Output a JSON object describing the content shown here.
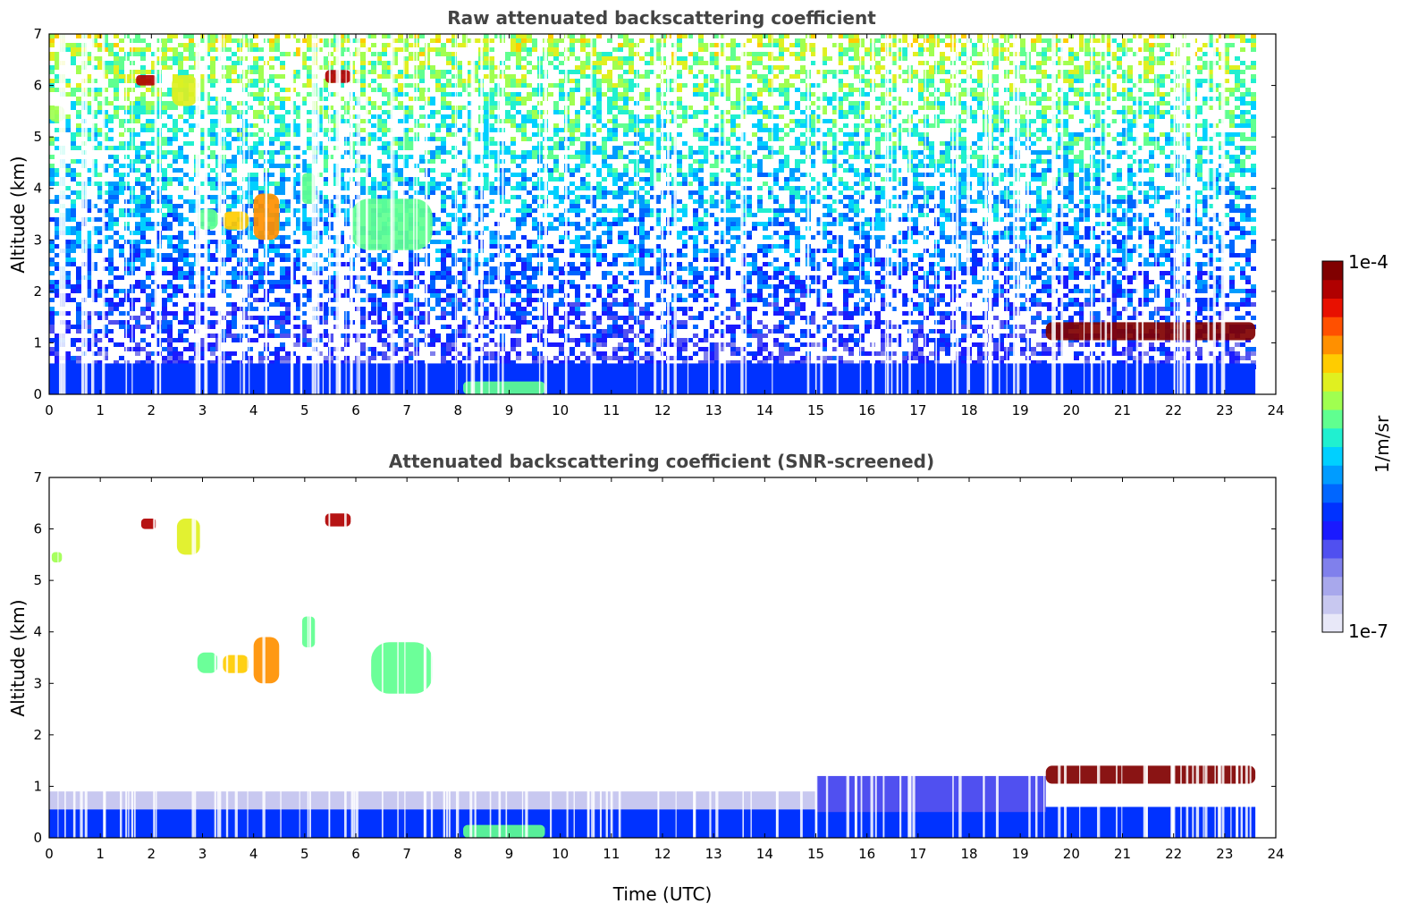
{
  "chart_data": [
    {
      "type": "heatmap",
      "title": "Raw attenuated backscattering coefficient",
      "xlabel": "",
      "ylabel": "Altitude (km)",
      "xlim": [
        0,
        24
      ],
      "ylim": [
        0,
        7
      ],
      "x_ticks": [
        "0",
        "1",
        "2",
        "3",
        "4",
        "5",
        "6",
        "7",
        "8",
        "9",
        "10",
        "11",
        "12",
        "13",
        "14",
        "15",
        "16",
        "17",
        "18",
        "19",
        "20",
        "21",
        "22",
        "23",
        "24"
      ],
      "y_ticks": [
        "0",
        "1",
        "2",
        "3",
        "4",
        "5",
        "6",
        "7"
      ],
      "data_end_hour": 23.6,
      "background": "noisy signal increasing with altitude (blue near surface to yellow-green near 7 km)",
      "features": [
        {
          "label": "boundary layer",
          "x": [
            0,
            23.6
          ],
          "y": [
            0,
            0.6
          ],
          "level": 0.3
        },
        {
          "label": "fog/low layer",
          "x": [
            8.1,
            9.7
          ],
          "y": [
            0,
            0.25
          ],
          "level": 0.55
        },
        {
          "label": "cloud",
          "x": [
            1.7,
            2.1
          ],
          "y": [
            6.0,
            6.2
          ],
          "level": 0.9
        },
        {
          "label": "cloud",
          "x": [
            2.4,
            2.9
          ],
          "y": [
            5.6,
            6.2
          ],
          "level": 0.65
        },
        {
          "label": "cloud",
          "x": [
            5.4,
            5.9
          ],
          "y": [
            6.05,
            6.3
          ],
          "level": 0.9
        },
        {
          "label": "cloud",
          "x": [
            0.0,
            0.3
          ],
          "y": [
            5.3,
            5.6
          ],
          "level": 0.6
        },
        {
          "label": "cloud",
          "x": [
            2.9,
            3.3
          ],
          "y": [
            3.2,
            3.6
          ],
          "level": 0.55
        },
        {
          "label": "cloud",
          "x": [
            3.4,
            3.9
          ],
          "y": [
            3.2,
            3.55
          ],
          "level": 0.7
        },
        {
          "label": "cloud",
          "x": [
            4.0,
            4.5
          ],
          "y": [
            3.0,
            3.9
          ],
          "level": 0.75
        },
        {
          "label": "cloud",
          "x": [
            4.95,
            5.2
          ],
          "y": [
            3.7,
            4.3
          ],
          "level": 0.55
        },
        {
          "label": "cloud",
          "x": [
            5.9,
            7.5
          ],
          "y": [
            2.8,
            3.8
          ],
          "level": 0.55
        },
        {
          "label": "cloud layer",
          "x": [
            19.5,
            23.6
          ],
          "y": [
            1.05,
            1.4
          ],
          "level": 0.95
        }
      ]
    },
    {
      "type": "heatmap",
      "title": "Attenuated backscattering coefficient (SNR-screened)",
      "xlabel": "Time (UTC)",
      "ylabel": "Altitude (km)",
      "xlim": [
        0,
        24
      ],
      "ylim": [
        0,
        7
      ],
      "x_ticks": [
        "0",
        "1",
        "2",
        "3",
        "4",
        "5",
        "6",
        "7",
        "8",
        "9",
        "10",
        "11",
        "12",
        "13",
        "14",
        "15",
        "16",
        "17",
        "18",
        "19",
        "20",
        "21",
        "22",
        "23",
        "24"
      ],
      "y_ticks": [
        "0",
        "1",
        "2",
        "3",
        "4",
        "5",
        "6",
        "7"
      ],
      "data_end_hour": 23.6,
      "background": "screened out above boundary layer",
      "features": [
        {
          "label": "boundary layer",
          "x": [
            0,
            23.6
          ],
          "y": [
            0,
            0.6
          ],
          "level": 0.3
        },
        {
          "label": "aerosol layer",
          "x": [
            0,
            18.0
          ],
          "y": [
            0.55,
            0.9
          ],
          "level": 0.05
        },
        {
          "label": "aerosol layer",
          "x": [
            15.0,
            19.5
          ],
          "y": [
            0.5,
            1.2
          ],
          "level": 0.2
        },
        {
          "label": "fog/low layer",
          "x": [
            8.1,
            9.7
          ],
          "y": [
            0,
            0.25
          ],
          "level": 0.55
        },
        {
          "label": "cloud",
          "x": [
            1.8,
            2.1
          ],
          "y": [
            6.0,
            6.2
          ],
          "level": 0.9
        },
        {
          "label": "cloud",
          "x": [
            2.5,
            2.95
          ],
          "y": [
            5.5,
            6.2
          ],
          "level": 0.65
        },
        {
          "label": "cloud",
          "x": [
            5.4,
            5.9
          ],
          "y": [
            6.05,
            6.3
          ],
          "level": 0.9
        },
        {
          "label": "cloud",
          "x": [
            0.05,
            0.25
          ],
          "y": [
            5.35,
            5.55
          ],
          "level": 0.6
        },
        {
          "label": "cloud",
          "x": [
            2.9,
            3.3
          ],
          "y": [
            3.2,
            3.6
          ],
          "level": 0.55
        },
        {
          "label": "cloud",
          "x": [
            3.4,
            3.9
          ],
          "y": [
            3.2,
            3.55
          ],
          "level": 0.7
        },
        {
          "label": "cloud",
          "x": [
            4.0,
            4.5
          ],
          "y": [
            3.0,
            3.9
          ],
          "level": 0.75
        },
        {
          "label": "cloud",
          "x": [
            4.95,
            5.2
          ],
          "y": [
            3.7,
            4.3
          ],
          "level": 0.55
        },
        {
          "label": "cloud",
          "x": [
            6.3,
            7.5
          ],
          "y": [
            2.8,
            3.8
          ],
          "level": 0.55
        },
        {
          "label": "cloud layer",
          "x": [
            19.5,
            23.6
          ],
          "y": [
            1.05,
            1.4
          ],
          "level": 1.0
        }
      ]
    }
  ],
  "colorbar": {
    "label": "1/m/sr",
    "max_label": "1e-4",
    "min_label": "1e-7",
    "range": [
      1e-07,
      0.0001
    ],
    "scale": "log",
    "colors": [
      "#e8e8f8",
      "#c8c8f0",
      "#a8a8ec",
      "#8080ec",
      "#5050f0",
      "#1a1aff",
      "#0032ff",
      "#0066ff",
      "#009cff",
      "#00d0ff",
      "#20f0d0",
      "#60ff90",
      "#a0ff50",
      "#e0f020",
      "#ffcc00",
      "#ff9000",
      "#ff5000",
      "#e81000",
      "#b00000",
      "#800000"
    ]
  }
}
